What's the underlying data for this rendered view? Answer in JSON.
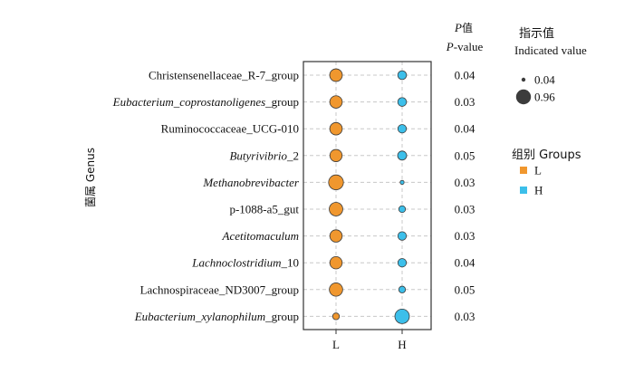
{
  "chart_data": {
    "type": "scatter",
    "subtype": "bubble",
    "x_categories": [
      "L",
      "H"
    ],
    "y_axis_title": "菌属 Genus",
    "pvalue_header_cn_italic": "P",
    "pvalue_header_cn": "值",
    "pvalue_header_en_italic": "P",
    "pvalue_header_en": "-value",
    "size_legend": {
      "title_cn": "指示值",
      "title_en": "Indicated value",
      "items": [
        {
          "label": "0.04",
          "value": 0.04
        },
        {
          "label": "0.96",
          "value": 0.96
        }
      ]
    },
    "group_legend": {
      "title": "组别 Groups",
      "items": [
        {
          "label": "L",
          "color": "#F0972E"
        },
        {
          "label": "H",
          "color": "#3CBFEA"
        }
      ]
    },
    "rows": [
      {
        "parts": [
          {
            "t": "Christensenellaceae_R-7_group",
            "i": false
          }
        ],
        "L": 0.62,
        "H": 0.22,
        "p": "0.04"
      },
      {
        "parts": [
          {
            "t": "Eubacterium_coprostanoligenes",
            "i": true
          },
          {
            "t": "_group",
            "i": false
          }
        ],
        "L": 0.6,
        "H": 0.22,
        "p": "0.03"
      },
      {
        "parts": [
          {
            "t": "Ruminococcaceae_UCG-010",
            "i": false
          }
        ],
        "L": 0.6,
        "H": 0.2,
        "p": "0.04"
      },
      {
        "parts": [
          {
            "t": "Butyrivibrio",
            "i": true
          },
          {
            "t": "_2",
            "i": false
          }
        ],
        "L": 0.57,
        "H": 0.24,
        "p": "0.05"
      },
      {
        "parts": [
          {
            "t": "Methanobrevibacter",
            "i": true
          }
        ],
        "L": 0.96,
        "H": 0.04,
        "p": "0.03"
      },
      {
        "parts": [
          {
            "t": "p-1088-a5_gut",
            "i": false
          }
        ],
        "L": 0.75,
        "H": 0.1,
        "p": "0.03"
      },
      {
        "parts": [
          {
            "t": "Acetitomaculum",
            "i": true
          }
        ],
        "L": 0.58,
        "H": 0.2,
        "p": "0.03"
      },
      {
        "parts": [
          {
            "t": "Lachnoclostridium",
            "i": true
          },
          {
            "t": "_10",
            "i": false
          }
        ],
        "L": 0.58,
        "H": 0.2,
        "p": "0.04"
      },
      {
        "parts": [
          {
            "t": "Lachnospiraceae_ND3007_group",
            "i": false
          }
        ],
        "L": 0.72,
        "H": 0.1,
        "p": "0.05"
      },
      {
        "parts": [
          {
            "t": "Eubacterium_xylanophilum",
            "i": true
          },
          {
            "t": "_group",
            "i": false
          }
        ],
        "L": 0.1,
        "H": 0.9,
        "p": "0.03"
      }
    ]
  }
}
